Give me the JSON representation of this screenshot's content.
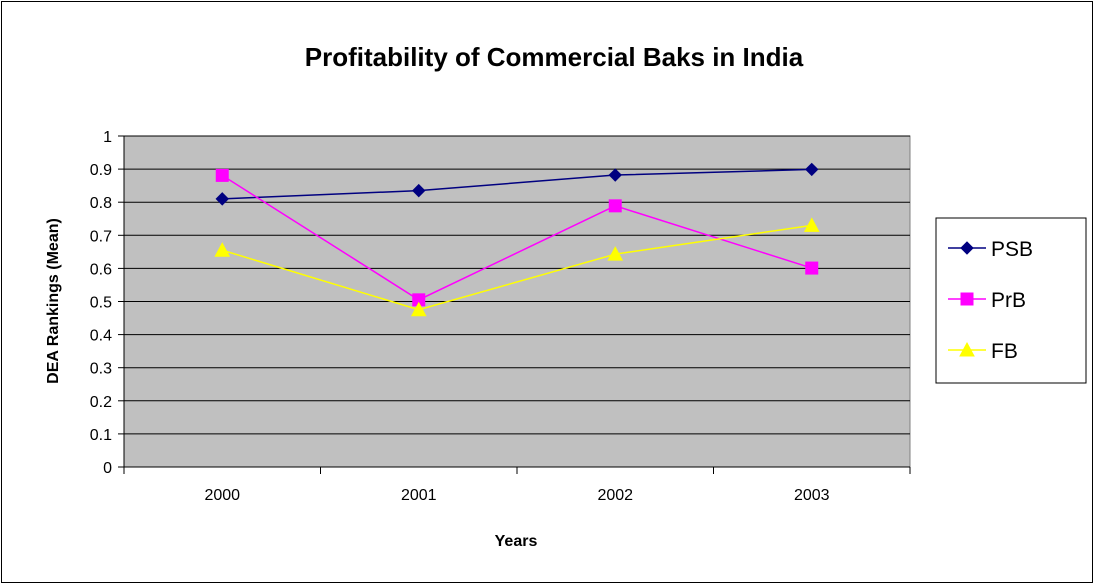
{
  "chart_data": {
    "type": "line",
    "title": "Profitability of Commercial Baks in India",
    "xlabel": "Years",
    "ylabel": "DEA Rankings (Mean)",
    "categories": [
      "2000",
      "2001",
      "2002",
      "2003"
    ],
    "ylim": [
      0,
      1
    ],
    "yticks": [
      "0",
      "0.1",
      "0.2",
      "0.3",
      "0.4",
      "0.5",
      "0.6",
      "0.7",
      "0.8",
      "0.9",
      "1"
    ],
    "grid": true,
    "legend_position": "right",
    "series": [
      {
        "name": "PSB",
        "values": [
          0.81,
          0.835,
          0.882,
          0.899
        ],
        "color": "#000080",
        "marker": "diamond"
      },
      {
        "name": "PrB",
        "values": [
          0.881,
          0.505,
          0.789,
          0.601
        ],
        "color": "#FF00FF",
        "marker": "square"
      },
      {
        "name": "FB",
        "values": [
          0.655,
          0.475,
          0.643,
          0.73
        ],
        "color": "#FFFF00",
        "marker": "triangle"
      }
    ],
    "plot_background": "#C0C0C0"
  }
}
